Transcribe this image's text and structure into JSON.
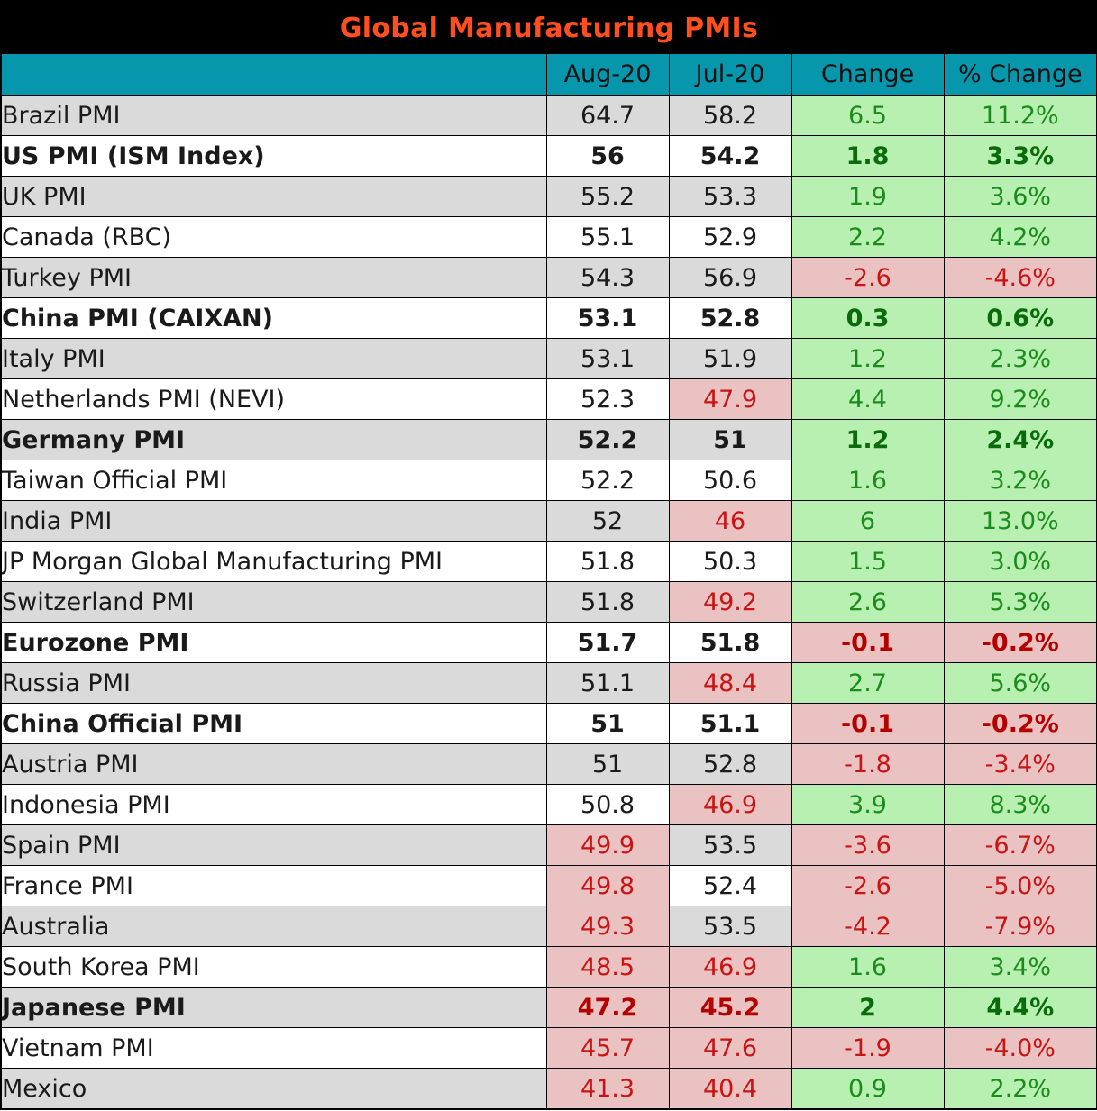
{
  "title": "Global Manufacturing PMIs",
  "columns": [
    "",
    "Aug-20",
    "Jul-20",
    "Change",
    "% Change"
  ],
  "rows": [
    {
      "name": "Brazil PMI",
      "aug": "64.7",
      "jul": "58.2",
      "change": "6.5",
      "pct": "11.2%",
      "bold": false,
      "shade": true,
      "aug_low": false,
      "jul_low": false,
      "change_neg": false
    },
    {
      "name": "US PMI (ISM Index)",
      "aug": "56",
      "jul": "54.2",
      "change": "1.8",
      "pct": "3.3%",
      "bold": true,
      "shade": false,
      "aug_low": false,
      "jul_low": false,
      "change_neg": false
    },
    {
      "name": "UK PMI",
      "aug": "55.2",
      "jul": "53.3",
      "change": "1.9",
      "pct": "3.6%",
      "bold": false,
      "shade": true,
      "aug_low": false,
      "jul_low": false,
      "change_neg": false
    },
    {
      "name": "Canada (RBC)",
      "aug": "55.1",
      "jul": "52.9",
      "change": "2.2",
      "pct": "4.2%",
      "bold": false,
      "shade": false,
      "aug_low": false,
      "jul_low": false,
      "change_neg": false
    },
    {
      "name": "Turkey PMI",
      "aug": "54.3",
      "jul": "56.9",
      "change": "-2.6",
      "pct": "-4.6%",
      "bold": false,
      "shade": true,
      "aug_low": false,
      "jul_low": false,
      "change_neg": true
    },
    {
      "name": "China PMI (CAIXAN)",
      "aug": "53.1",
      "jul": "52.8",
      "change": "0.3",
      "pct": "0.6%",
      "bold": true,
      "shade": false,
      "aug_low": false,
      "jul_low": false,
      "change_neg": false
    },
    {
      "name": "Italy PMI",
      "aug": "53.1",
      "jul": "51.9",
      "change": "1.2",
      "pct": "2.3%",
      "bold": false,
      "shade": true,
      "aug_low": false,
      "jul_low": false,
      "change_neg": false
    },
    {
      "name": "Netherlands PMI (NEVI)",
      "aug": "52.3",
      "jul": "47.9",
      "change": "4.4",
      "pct": "9.2%",
      "bold": false,
      "shade": false,
      "aug_low": false,
      "jul_low": true,
      "change_neg": false
    },
    {
      "name": "Germany PMI",
      "aug": "52.2",
      "jul": "51",
      "change": "1.2",
      "pct": "2.4%",
      "bold": true,
      "shade": true,
      "aug_low": false,
      "jul_low": false,
      "change_neg": false
    },
    {
      "name": "Taiwan Official PMI",
      "aug": "52.2",
      "jul": "50.6",
      "change": "1.6",
      "pct": "3.2%",
      "bold": false,
      "shade": false,
      "aug_low": false,
      "jul_low": false,
      "change_neg": false
    },
    {
      "name": "India PMI",
      "aug": "52",
      "jul": "46",
      "change": "6",
      "pct": "13.0%",
      "bold": false,
      "shade": true,
      "aug_low": false,
      "jul_low": true,
      "change_neg": false
    },
    {
      "name": "JP Morgan Global Manufacturing PMI",
      "aug": "51.8",
      "jul": "50.3",
      "change": "1.5",
      "pct": "3.0%",
      "bold": false,
      "shade": false,
      "aug_low": false,
      "jul_low": false,
      "change_neg": false
    },
    {
      "name": "Switzerland PMI",
      "aug": "51.8",
      "jul": "49.2",
      "change": "2.6",
      "pct": "5.3%",
      "bold": false,
      "shade": true,
      "aug_low": false,
      "jul_low": true,
      "change_neg": false
    },
    {
      "name": "Eurozone PMI",
      "aug": "51.7",
      "jul": "51.8",
      "change": "-0.1",
      "pct": "-0.2%",
      "bold": true,
      "shade": false,
      "aug_low": false,
      "jul_low": false,
      "change_neg": true
    },
    {
      "name": "Russia PMI",
      "aug": "51.1",
      "jul": "48.4",
      "change": "2.7",
      "pct": "5.6%",
      "bold": false,
      "shade": true,
      "aug_low": false,
      "jul_low": true,
      "change_neg": false
    },
    {
      "name": "China Official PMI",
      "aug": "51",
      "jul": "51.1",
      "change": "-0.1",
      "pct": "-0.2%",
      "bold": true,
      "shade": false,
      "aug_low": false,
      "jul_low": false,
      "change_neg": true
    },
    {
      "name": "Austria PMI",
      "aug": "51",
      "jul": "52.8",
      "change": "-1.8",
      "pct": "-3.4%",
      "bold": false,
      "shade": true,
      "aug_low": false,
      "jul_low": false,
      "change_neg": true
    },
    {
      "name": "Indonesia PMI",
      "aug": "50.8",
      "jul": "46.9",
      "change": "3.9",
      "pct": "8.3%",
      "bold": false,
      "shade": false,
      "aug_low": false,
      "jul_low": true,
      "change_neg": false
    },
    {
      "name": "Spain PMI",
      "aug": "49.9",
      "jul": "53.5",
      "change": "-3.6",
      "pct": "-6.7%",
      "bold": false,
      "shade": true,
      "aug_low": true,
      "jul_low": false,
      "change_neg": true
    },
    {
      "name": "France PMI",
      "aug": "49.8",
      "jul": "52.4",
      "change": "-2.6",
      "pct": "-5.0%",
      "bold": false,
      "shade": false,
      "aug_low": true,
      "jul_low": false,
      "change_neg": true
    },
    {
      "name": "Australia",
      "aug": "49.3",
      "jul": "53.5",
      "change": "-4.2",
      "pct": "-7.9%",
      "bold": false,
      "shade": true,
      "aug_low": true,
      "jul_low": false,
      "change_neg": true
    },
    {
      "name": "South Korea PMI",
      "aug": "48.5",
      "jul": "46.9",
      "change": "1.6",
      "pct": "3.4%",
      "bold": false,
      "shade": false,
      "aug_low": true,
      "jul_low": true,
      "change_neg": false
    },
    {
      "name": "Japanese PMI",
      "aug": "47.2",
      "jul": "45.2",
      "change": "2",
      "pct": "4.4%",
      "bold": true,
      "shade": true,
      "aug_low": true,
      "jul_low": true,
      "change_neg": false
    },
    {
      "name": "Vietnam PMI",
      "aug": "45.7",
      "jul": "47.6",
      "change": "-1.9",
      "pct": "-4.0%",
      "bold": false,
      "shade": false,
      "aug_low": true,
      "jul_low": true,
      "change_neg": true
    },
    {
      "name": "Mexico",
      "aug": "41.3",
      "jul": "40.4",
      "change": "0.9",
      "pct": "2.2%",
      "bold": false,
      "shade": true,
      "aug_low": true,
      "jul_low": true,
      "change_neg": false
    }
  ],
  "colors": {
    "title_bg": "#000000",
    "title_text": "#ff4e1f",
    "header_bg": "#0797ad",
    "row_shade": "#dadada",
    "positive_bg": "#b8f0b2",
    "positive_text": "#1b8c1b",
    "negative_bg": "#eac2c2",
    "negative_text": "#c81414"
  }
}
